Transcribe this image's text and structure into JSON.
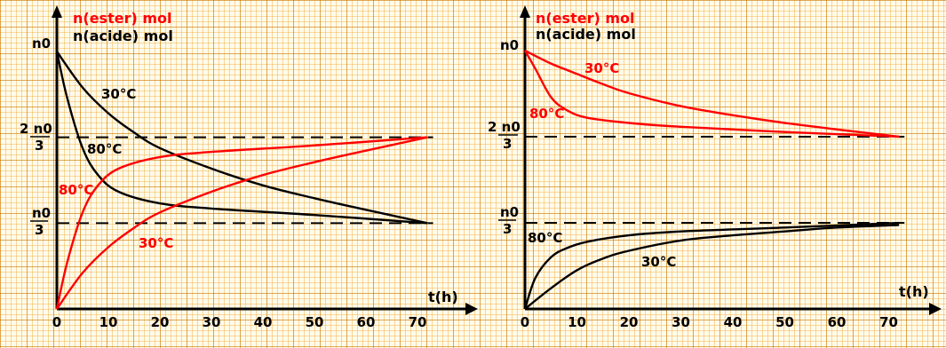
{
  "chart_data": [
    {
      "type": "line",
      "legend_title_ester": "n(ester) mol",
      "legend_title_acid": "n(acide)  mol",
      "xlabel": "t(h)",
      "x_ticks": [
        "0",
        "10",
        "20",
        "30",
        "40",
        "50",
        "60",
        "70"
      ],
      "y_labels": {
        "n0": "n0",
        "two_thirds_num": "2 n0",
        "two_thirds_den": "3",
        "third_num": "n0",
        "third_den": "3"
      },
      "xlim": [
        0,
        72
      ],
      "ylim_fraction_of_n0": [
        0,
        1
      ],
      "reference_lines": [
        0.6667,
        0.3333
      ],
      "series": [
        {
          "name": "30°C",
          "color": "#000000",
          "x": [
            0,
            5,
            10,
            15,
            20,
            30,
            40,
            50,
            60,
            72
          ],
          "y": [
            1.0,
            0.86,
            0.76,
            0.685,
            0.625,
            0.545,
            0.48,
            0.43,
            0.385,
            0.333
          ]
        },
        {
          "name": "80°C",
          "color": "#000000",
          "x": [
            0,
            2,
            5,
            8,
            12,
            20,
            30,
            50,
            72
          ],
          "y": [
            1.0,
            0.82,
            0.625,
            0.52,
            0.455,
            0.41,
            0.39,
            0.365,
            0.333
          ]
        },
        {
          "name": "80°C",
          "color": "#ff0000",
          "x": [
            0,
            2,
            5,
            8,
            12,
            20,
            30,
            50,
            72
          ],
          "y": [
            0.0,
            0.18,
            0.375,
            0.48,
            0.545,
            0.59,
            0.61,
            0.635,
            0.667
          ]
        },
        {
          "name": "30°C",
          "color": "#ff0000",
          "x": [
            0,
            5,
            10,
            15,
            20,
            30,
            40,
            50,
            60,
            72
          ],
          "y": [
            0.0,
            0.14,
            0.24,
            0.315,
            0.375,
            0.455,
            0.52,
            0.57,
            0.615,
            0.667
          ]
        }
      ],
      "annotations": [
        {
          "text": "30°C",
          "color": "#000000"
        },
        {
          "text": "80°C",
          "color": "#000000"
        },
        {
          "text": "80°C",
          "color": "#ff0000"
        },
        {
          "text": "30°C",
          "color": "#ff0000"
        }
      ]
    },
    {
      "type": "line",
      "legend_title_ester": "n(ester) mol",
      "legend_title_acid": "n(acide) mol",
      "xlabel": "t(h)",
      "x_ticks": [
        "0",
        "10",
        "20",
        "30",
        "40",
        "50",
        "60",
        "70"
      ],
      "y_labels": {
        "n0": "n0",
        "two_thirds_num": "2 n0",
        "two_thirds_den": "3",
        "third_num": "n0",
        "third_den": "3"
      },
      "xlim": [
        0,
        72
      ],
      "ylim_fraction_of_n0": [
        0,
        1
      ],
      "reference_lines": [
        0.6667,
        0.3333
      ],
      "series": [
        {
          "name": "30°C",
          "color": "#ff0000",
          "x": [
            0,
            5,
            10,
            15,
            20,
            30,
            40,
            50,
            60,
            72
          ],
          "y": [
            1.0,
            0.95,
            0.91,
            0.87,
            0.835,
            0.785,
            0.75,
            0.72,
            0.695,
            0.667
          ]
        },
        {
          "name": "80°C",
          "color": "#ff0000",
          "x": [
            0,
            2,
            5,
            8,
            12,
            20,
            30,
            50,
            72
          ],
          "y": [
            1.0,
            0.93,
            0.82,
            0.77,
            0.74,
            0.72,
            0.705,
            0.685,
            0.667
          ]
        },
        {
          "name": "80°C",
          "color": "#000000",
          "x": [
            0,
            2,
            5,
            8,
            12,
            20,
            30,
            50,
            72
          ],
          "y": [
            0.0,
            0.12,
            0.2,
            0.235,
            0.26,
            0.285,
            0.3,
            0.315,
            0.333
          ]
        },
        {
          "name": "30°C",
          "color": "#000000",
          "x": [
            0,
            5,
            10,
            15,
            20,
            30,
            40,
            50,
            60,
            72
          ],
          "y": [
            0.0,
            0.08,
            0.15,
            0.195,
            0.225,
            0.265,
            0.285,
            0.3,
            0.315,
            0.325
          ]
        }
      ],
      "annotations": [
        {
          "text": "30°C",
          "color": "#ff0000"
        },
        {
          "text": "80°C",
          "color": "#ff0000"
        },
        {
          "text": "80°C",
          "color": "#000000"
        },
        {
          "text": "30°C",
          "color": "#000000"
        }
      ]
    }
  ]
}
